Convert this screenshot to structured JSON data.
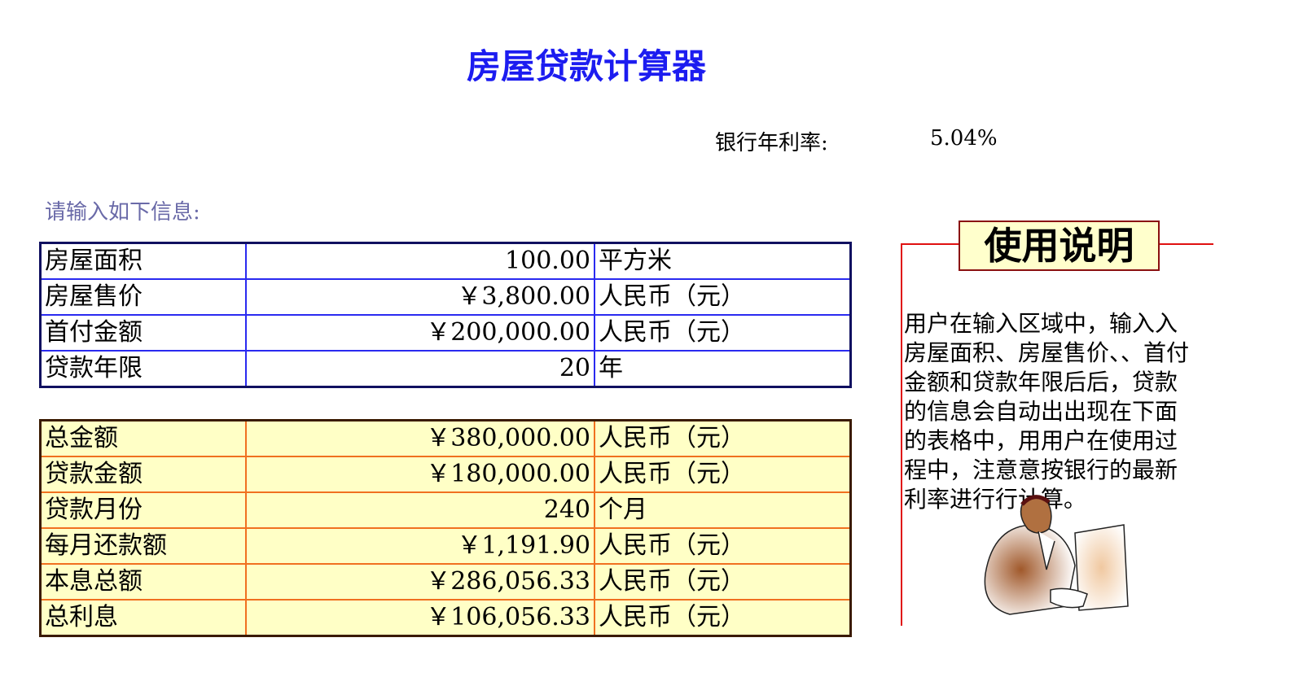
{
  "title": "房屋贷款计算器",
  "rate": {
    "label": "银行年利率:",
    "value": "5.04%"
  },
  "prompt": "请输入如下信息:",
  "input_table": [
    {
      "label": "房屋面积",
      "value": "100.00",
      "unit": "平方米"
    },
    {
      "label": "房屋售价",
      "value": "￥3,800.00",
      "unit": "人民币（元）"
    },
    {
      "label": "首付金额",
      "value": "￥200,000.00",
      "unit": "人民币（元）"
    },
    {
      "label": "贷款年限",
      "value": "20",
      "unit": "年"
    }
  ],
  "result_table": [
    {
      "label": "总金额",
      "value": "￥380,000.00",
      "unit": "人民币（元）"
    },
    {
      "label": "贷款金额",
      "value": "￥180,000.00",
      "unit": "人民币（元）"
    },
    {
      "label": "贷款月份",
      "value": "240",
      "unit": "个月"
    },
    {
      "label": "每月还款额",
      "value": "￥1,191.90",
      "unit": "人民币（元）"
    },
    {
      "label": "本息总额",
      "value": "￥286,056.33",
      "unit": "人民币（元）"
    },
    {
      "label": "总利息",
      "value": "￥106,056.33",
      "unit": "人民币（元）"
    }
  ],
  "help": {
    "title": "使用说明",
    "text": "用户在输入区域中，输入入房屋面积、房屋售价、、首付金额和贷款年限后后，贷款的信息会自动出出现在下面的表格中，用用户在使用过程中，注意意按银行的最新利率进行行计算。"
  },
  "colors": {
    "title": "#1c1cf0",
    "input_border": "#2a2af0",
    "result_fill": "#ffffc6",
    "result_border": "#f07020",
    "help_line": "#e01010"
  }
}
